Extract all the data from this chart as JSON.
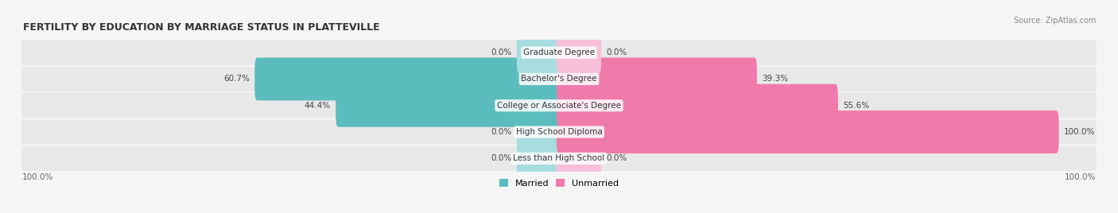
{
  "title": "FERTILITY BY EDUCATION BY MARRIAGE STATUS IN PLATTEVILLE",
  "source": "Source: ZipAtlas.com",
  "categories": [
    "Less than High School",
    "High School Diploma",
    "College or Associate's Degree",
    "Bachelor's Degree",
    "Graduate Degree"
  ],
  "married": [
    0.0,
    0.0,
    44.4,
    60.7,
    0.0
  ],
  "unmarried": [
    0.0,
    100.0,
    55.6,
    39.3,
    0.0
  ],
  "married_color": "#5bbcbe",
  "unmarried_color": "#f07aaa",
  "married_light_color": "#a8dde0",
  "unmarried_light_color": "#f7c0d8",
  "bar_bg_color": "#eeeeee",
  "background_color": "#f5f5f5",
  "row_bg_color": "#e8e8e8",
  "axis_label_left": "100.0%",
  "axis_label_right": "100.0%",
  "figsize": [
    14.06,
    2.68
  ],
  "dpi": 100
}
